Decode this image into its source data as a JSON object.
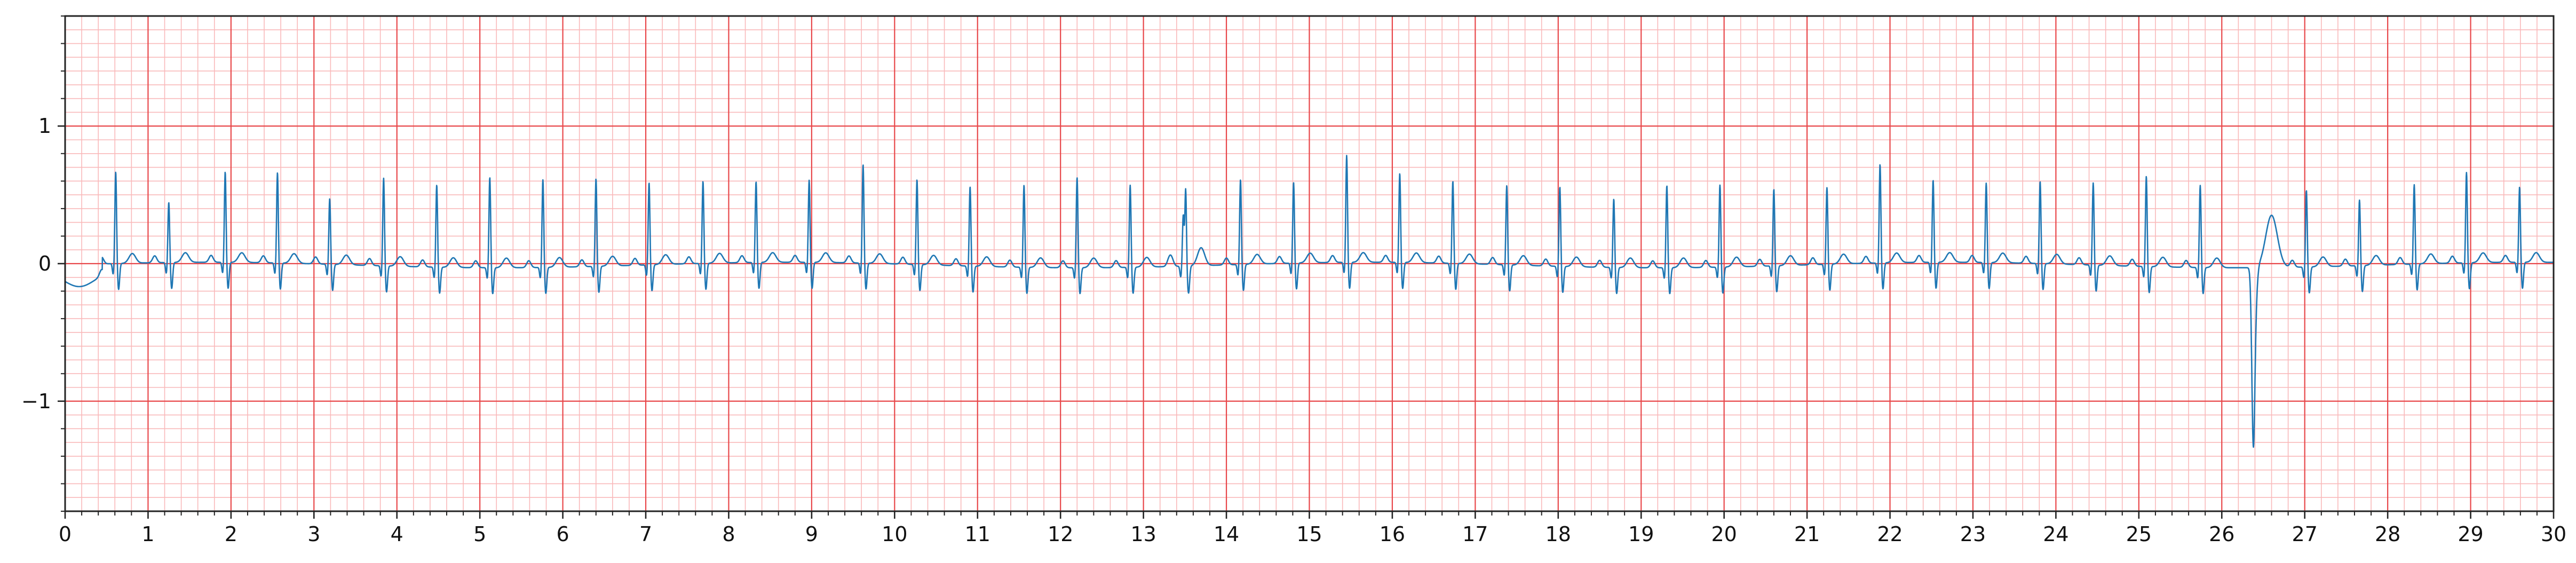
{
  "chart_data": {
    "type": "line",
    "title": "",
    "xlabel": "",
    "ylabel": "",
    "xlim": [
      0,
      30
    ],
    "ylim": [
      -1.8,
      1.8
    ],
    "x_ticks": [
      0,
      1,
      2,
      3,
      4,
      5,
      6,
      7,
      8,
      9,
      10,
      11,
      12,
      13,
      14,
      15,
      16,
      17,
      18,
      19,
      20,
      21,
      22,
      23,
      24,
      25,
      26,
      27,
      28,
      29,
      30
    ],
    "x_tick_labels": [
      "0",
      "1",
      "2",
      "3",
      "4",
      "5",
      "6",
      "7",
      "8",
      "9",
      "10",
      "11",
      "12",
      "13",
      "14",
      "15",
      "16",
      "17",
      "18",
      "19",
      "20",
      "21",
      "22",
      "23",
      "24",
      "25",
      "26",
      "27",
      "28",
      "29",
      "30"
    ],
    "y_ticks": [
      1,
      0,
      -1
    ],
    "y_tick_labels": [
      "1",
      "0",
      "−1"
    ],
    "grid": true,
    "grid_major_x": 1.0,
    "grid_minor_x": 0.2,
    "grid_major_y": 1.0,
    "grid_minor_y": 0.1,
    "colors": {
      "trace": "#1f77b4",
      "grid_major": "#e8474a",
      "grid_minor": "#f9b9ba",
      "axes": "#222222"
    },
    "series": [
      {
        "beats": [
          [
            0.61,
            0.67
          ],
          [
            1.25,
            0.44
          ],
          [
            1.93,
            0.66
          ],
          [
            2.56,
            0.66
          ],
          [
            3.19,
            0.48
          ],
          [
            3.84,
            0.64
          ],
          [
            4.48,
            0.6
          ],
          [
            5.12,
            0.66
          ],
          [
            5.76,
            0.64
          ],
          [
            6.4,
            0.64
          ],
          [
            7.04,
            0.6
          ],
          [
            7.69,
            0.6
          ],
          [
            8.33,
            0.59
          ],
          [
            8.97,
            0.6
          ],
          [
            9.62,
            0.72
          ],
          [
            10.27,
            0.62
          ],
          [
            10.91,
            0.58
          ],
          [
            11.56,
            0.6
          ],
          [
            12.2,
            0.66
          ],
          [
            12.84,
            0.6
          ],
          [
            13.48,
            0.45
          ],
          [
            13.51,
            0.73
          ],
          [
            14.17,
            0.62
          ],
          [
            14.81,
            0.59
          ],
          [
            15.45,
            0.78
          ],
          [
            16.09,
            0.65
          ],
          [
            16.73,
            0.6
          ],
          [
            17.38,
            0.58
          ],
          [
            18.02,
            0.58
          ],
          [
            18.67,
            0.5
          ],
          [
            19.31,
            0.6
          ],
          [
            19.95,
            0.6
          ],
          [
            20.6,
            0.56
          ],
          [
            21.24,
            0.56
          ],
          [
            21.88,
            0.72
          ],
          [
            22.52,
            0.6
          ],
          [
            23.16,
            0.58
          ],
          [
            23.81,
            0.6
          ],
          [
            24.45,
            0.6
          ],
          [
            25.09,
            0.66
          ],
          [
            25.74,
            0.6
          ],
          [
            26.38,
            -1.24
          ],
          [
            27.02,
            0.56
          ],
          [
            27.66,
            0.48
          ],
          [
            28.32,
            0.58
          ],
          [
            28.95,
            0.66
          ],
          [
            29.59,
            0.55
          ]
        ]
      }
    ]
  }
}
